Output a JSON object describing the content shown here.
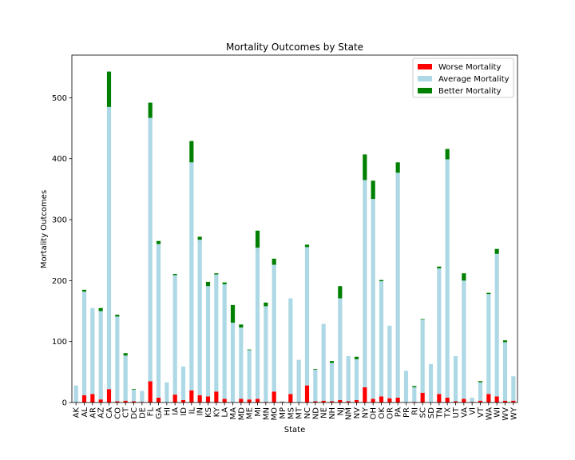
{
  "chart_data": {
    "type": "bar",
    "stacked": true,
    "title": "Mortality Outcomes by State",
    "xlabel": "State",
    "ylabel": "Mortality Outcomes",
    "ylim": [
      0,
      570
    ],
    "yticks": [
      0,
      100,
      200,
      300,
      400,
      500
    ],
    "legend_position": "top-right",
    "categories": [
      "AK",
      "AL",
      "AR",
      "AZ",
      "CA",
      "CO",
      "CT",
      "DC",
      "DE",
      "FL",
      "GA",
      "HI",
      "IA",
      "ID",
      "IL",
      "IN",
      "KS",
      "KY",
      "LA",
      "MA",
      "MD",
      "ME",
      "MI",
      "MN",
      "MO",
      "MP",
      "MS",
      "MT",
      "NC",
      "ND",
      "NE",
      "NH",
      "NJ",
      "NM",
      "NV",
      "NY",
      "OH",
      "OK",
      "OR",
      "PA",
      "PR",
      "RI",
      "SC",
      "SD",
      "TN",
      "TX",
      "UT",
      "VA",
      "VI",
      "VT",
      "WA",
      "WI",
      "WV",
      "WY"
    ],
    "series": [
      {
        "name": "Worse Mortality",
        "color": "#ff0000",
        "values": [
          0,
          12,
          14,
          5,
          22,
          2,
          3,
          2,
          1,
          35,
          8,
          0,
          13,
          4,
          20,
          12,
          10,
          18,
          6,
          0,
          6,
          5,
          6,
          1,
          18,
          1,
          14,
          0,
          28,
          2,
          3,
          2,
          4,
          2,
          4,
          25,
          6,
          10,
          7,
          8,
          0,
          1,
          16,
          0,
          14,
          8,
          2,
          6,
          1,
          3,
          14,
          10,
          3,
          3
        ]
      },
      {
        "name": "Average Mortality",
        "color": "#add8e6",
        "values": [
          28,
          170,
          141,
          145,
          463,
          139,
          74,
          19,
          18,
          432,
          252,
          33,
          196,
          55,
          374,
          255,
          181,
          192,
          188,
          131,
          117,
          81,
          248,
          157,
          208,
          1,
          157,
          70,
          227,
          52,
          126,
          63,
          167,
          74,
          67,
          340,
          328,
          189,
          119,
          369,
          52,
          24,
          120,
          63,
          206,
          391,
          74,
          194,
          7,
          30,
          164,
          234,
          96,
          40
        ]
      },
      {
        "name": "Better Mortality",
        "color": "#008000",
        "values": [
          0,
          3,
          0,
          5,
          58,
          3,
          4,
          1,
          0,
          25,
          5,
          0,
          2,
          0,
          35,
          5,
          7,
          2,
          3,
          29,
          5,
          1,
          28,
          6,
          10,
          0,
          0,
          0,
          4,
          1,
          0,
          3,
          20,
          0,
          4,
          42,
          30,
          2,
          0,
          17,
          0,
          2,
          1,
          0,
          3,
          17,
          0,
          12,
          0,
          2,
          2,
          8,
          3,
          0
        ]
      }
    ]
  }
}
